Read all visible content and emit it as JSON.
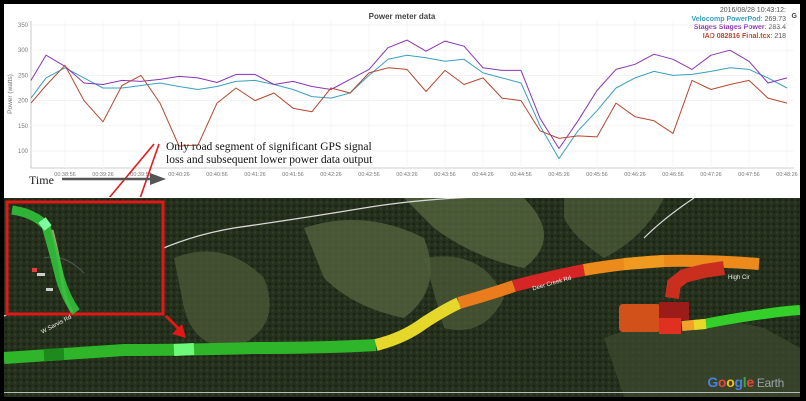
{
  "chart": {
    "title": "Power meter data",
    "timestamp": "2016/08/28 10:43:12:",
    "corner_label": "G",
    "legend": [
      {
        "name": "Velocomp PowerPod",
        "value": "269.73",
        "color": "#3a9fc0"
      },
      {
        "name": "Stages Stages Power",
        "value": "283.4",
        "color": "#8a35b5"
      },
      {
        "name": "IAD 082816 Final.tcx",
        "value": "218",
        "color": "#b5482e"
      }
    ],
    "y_axis_label": "Power (watts)",
    "y_ticks": [
      "350",
      "300",
      "250",
      "200",
      "150",
      "100"
    ],
    "x_ticks": [
      "00:38:56",
      "00:39:26",
      "00:39:56",
      "00:40:26",
      "00:40:56",
      "00:41:26",
      "00:41:56",
      "00:42:26",
      "00:42:56",
      "00:43:26",
      "00:43:56",
      "00:44:26",
      "00:44:56",
      "00:45:26",
      "00:45:56",
      "00:46:26",
      "00:46:56",
      "00:47:26",
      "00:47:56",
      "00:48:26"
    ]
  },
  "annotation": {
    "line1": "Only road segment of significant GPS signal",
    "line2": "loss and subsequent lower power data output"
  },
  "time_axis": {
    "label": "Time"
  },
  "map": {
    "road_labels": [
      "W Sarvis Rd",
      "Deer Creek Rd",
      "High Cir"
    ],
    "attribution_google": "Google",
    "attribution_earth": "Earth",
    "google_colors": [
      "#4a7ee0",
      "#e04a3a",
      "#f0c020",
      "#4a7ee0",
      "#3aa84a",
      "#e04a3a"
    ]
  },
  "chart_data": {
    "type": "line",
    "title": "Power meter data",
    "xlabel": "Time",
    "ylabel": "Power (watts)",
    "ylim": [
      75,
      350
    ],
    "grid": true,
    "legend_position": "top-right",
    "x": [
      "00:38:26",
      "00:38:41",
      "00:38:56",
      "00:39:11",
      "00:39:26",
      "00:39:41",
      "00:39:56",
      "00:40:11",
      "00:40:26",
      "00:40:41",
      "00:40:56",
      "00:41:11",
      "00:41:26",
      "00:41:41",
      "00:41:56",
      "00:42:11",
      "00:42:26",
      "00:42:41",
      "00:42:56",
      "00:43:11",
      "00:43:26",
      "00:43:41",
      "00:43:56",
      "00:44:11",
      "00:44:26",
      "00:44:41",
      "00:44:56",
      "00:45:11",
      "00:45:26",
      "00:45:41",
      "00:45:56",
      "00:46:11",
      "00:46:26",
      "00:46:41",
      "00:46:56",
      "00:47:11",
      "00:47:26",
      "00:47:41",
      "00:47:56",
      "00:48:11",
      "00:48:26"
    ],
    "series": [
      {
        "name": "Velocomp PowerPod",
        "color": "#3a9fc0",
        "values": [
          205,
          245,
          265,
          245,
          225,
          225,
          230,
          235,
          228,
          222,
          228,
          238,
          240,
          232,
          222,
          208,
          205,
          215,
          250,
          282,
          290,
          285,
          278,
          282,
          255,
          245,
          235,
          150,
          85,
          140,
          180,
          225,
          245,
          258,
          250,
          252,
          258,
          265,
          262,
          245,
          225
        ]
      },
      {
        "name": "Stages Stages Power",
        "color": "#8a35b5",
        "values": [
          240,
          290,
          268,
          235,
          232,
          240,
          238,
          242,
          248,
          245,
          236,
          252,
          252,
          232,
          238,
          228,
          222,
          242,
          262,
          305,
          320,
          298,
          318,
          308,
          265,
          260,
          260,
          165,
          105,
          160,
          220,
          262,
          272,
          292,
          282,
          262,
          290,
          300,
          278,
          235,
          245
        ]
      },
      {
        "name": "IAD 082816 Final.tcx",
        "color": "#b5482e",
        "values": [
          195,
          230,
          270,
          200,
          158,
          230,
          250,
          195,
          110,
          112,
          195,
          225,
          200,
          215,
          185,
          178,
          225,
          215,
          255,
          265,
          262,
          218,
          260,
          232,
          245,
          205,
          200,
          140,
          125,
          130,
          128,
          195,
          168,
          160,
          135,
          240,
          222,
          232,
          240,
          205,
          195
        ]
      }
    ]
  }
}
